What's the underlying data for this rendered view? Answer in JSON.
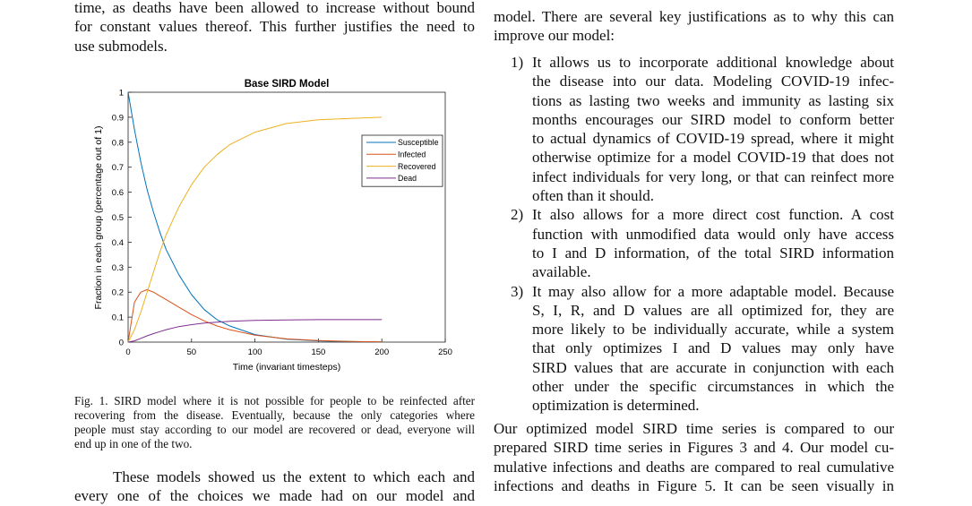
{
  "left_column": {
    "top_lines": [
      "time, as deaths have been allowed to increase without bound",
      "for constant values thereof. This further justifies the need to",
      "use submodels."
    ],
    "caption_lines": [
      "Fig. 1.  SIRD model where it is not possible for people to be reinfected after",
      "recovering from the disease. Eventually, because the only categories where",
      "people must stay according to our model are recovered or dead, everyone will",
      "end up in one of the two."
    ],
    "bottom_lines": [
      "These models showed us the extent to which each and",
      "every one of the choices we made had on our model and"
    ]
  },
  "right_column": {
    "intro_lines": [
      "model. There are several key justifications as to why this can",
      "improve our model:"
    ],
    "list": [
      {
        "num": "1)",
        "lines": [
          "It allows us to incorporate additional knowledge about",
          "the disease into our data. Modeling COVID-19 infec-",
          "tions as lasting two weeks and immunity as lasting six",
          "months encourages our SIRD model to conform better",
          "to actual dynamics of COVID-19 spread, where it might",
          "otherwise optimize for a model COVID-19 that does not",
          "infect individuals for very long, or that can reinfect more",
          "often than it should."
        ]
      },
      {
        "num": "2)",
        "lines": [
          "It also allows for a more direct cost function. A cost",
          "function with unmodified data would only have access",
          "to I and D information, of the total SIRD information",
          "available."
        ]
      },
      {
        "num": "3)",
        "lines": [
          "It may also allow for a more adaptable model. Because",
          "S, I, R, and D values are all optimized for, they are",
          "more likely to be individually accurate, while a system",
          "that only optimizes I and D values may only have",
          "SIRD values that are accurate in conjunction with each",
          "other under the specific circumstances in which the",
          "optimization is determined."
        ]
      }
    ],
    "outro_lines": [
      "Our optimized model SIRD time series is compared to our",
      "prepared SIRD time series in Figures 3 and 4. Our model cu-",
      "mulative infections and deaths are compared to real cumulative",
      "infections and deaths in Figure 5. It can be seen visually in"
    ]
  },
  "chart_data": {
    "type": "line",
    "title": "Base SIRD Model",
    "xlabel": "Time (invariant timesteps)",
    "ylabel": "Fraction in each group (percentage out of 1)",
    "xlim": [
      0,
      250
    ],
    "ylim": [
      0,
      1
    ],
    "xticks": [
      "0",
      "50",
      "100",
      "150",
      "200",
      "250"
    ],
    "yticks": [
      "0",
      "0.1",
      "0.2",
      "0.3",
      "0.4",
      "0.5",
      "0.6",
      "0.7",
      "0.8",
      "0.9",
      "1"
    ],
    "grid": false,
    "legend_position": "upper right",
    "x": [
      0,
      5,
      10,
      15,
      20,
      25,
      30,
      40,
      50,
      60,
      70,
      80,
      100,
      125,
      150,
      175,
      200
    ],
    "series": [
      {
        "name": "Susceptible",
        "color": "#0072BD",
        "values": [
          1.0,
          0.85,
          0.72,
          0.61,
          0.52,
          0.44,
          0.37,
          0.27,
          0.19,
          0.13,
          0.09,
          0.065,
          0.03,
          0.012,
          0.005,
          0.002,
          0.001
        ]
      },
      {
        "name": "Infected",
        "color": "#D95319",
        "values": [
          0.0,
          0.16,
          0.2,
          0.21,
          0.2,
          0.185,
          0.17,
          0.14,
          0.11,
          0.085,
          0.065,
          0.05,
          0.028,
          0.013,
          0.006,
          0.003,
          0.001
        ]
      },
      {
        "name": "Recovered",
        "color": "#EDB120",
        "values": [
          0.0,
          0.05,
          0.12,
          0.2,
          0.28,
          0.36,
          0.43,
          0.54,
          0.63,
          0.7,
          0.75,
          0.79,
          0.84,
          0.875,
          0.89,
          0.895,
          0.9
        ]
      },
      {
        "name": "Dead",
        "color": "#7E2F8E",
        "values": [
          0.0,
          0.005,
          0.015,
          0.025,
          0.034,
          0.042,
          0.05,
          0.062,
          0.07,
          0.076,
          0.08,
          0.083,
          0.087,
          0.089,
          0.09,
          0.09,
          0.09
        ]
      }
    ]
  }
}
